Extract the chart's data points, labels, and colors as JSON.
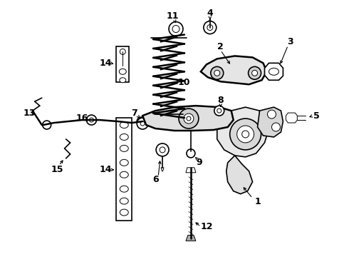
{
  "background_color": "#ffffff",
  "line_color": "#000000",
  "fig_width": 4.9,
  "fig_height": 3.6,
  "dpi": 100,
  "xlim": [
    0,
    490
  ],
  "ylim": [
    0,
    360
  ],
  "components": {
    "label_fontsize": 9,
    "label_fontweight": "bold"
  }
}
